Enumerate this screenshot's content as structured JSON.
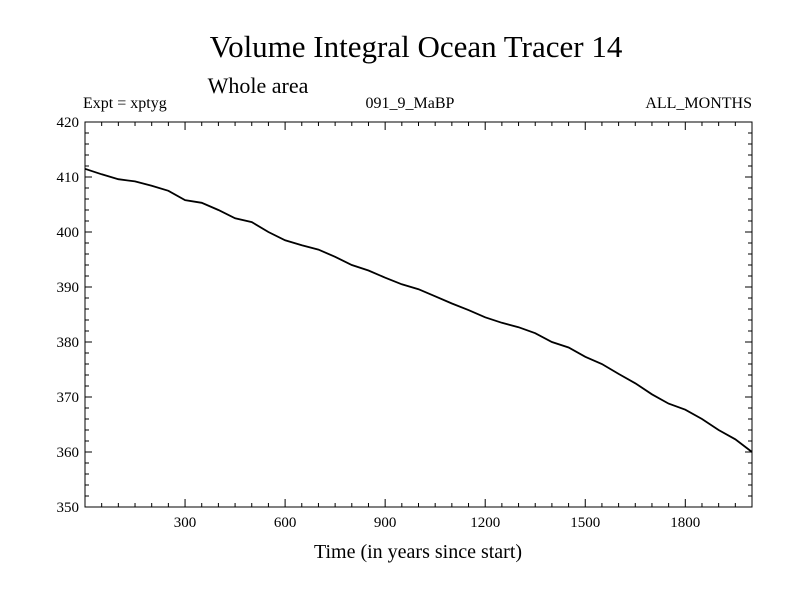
{
  "chart_data": {
    "type": "line",
    "title": "Volume Integral Ocean Tracer 14",
    "subtitle": "Whole area",
    "header_left": "Expt = xptyg",
    "header_center": "091_9_MaBP",
    "header_right": "ALL_MONTHS",
    "xlabel": "Time (in years since start)",
    "ylabel": "",
    "xlim": [
      0,
      2000
    ],
    "ylim": [
      350,
      420
    ],
    "x_ticks": [
      300,
      600,
      900,
      1200,
      1500,
      1800
    ],
    "y_ticks": [
      350,
      360,
      370,
      380,
      390,
      400,
      410,
      420
    ],
    "grid": false,
    "series": [
      {
        "x": [
          0,
          50,
          100,
          150,
          200,
          250,
          300,
          350,
          400,
          450,
          500,
          550,
          600,
          650,
          700,
          750,
          800,
          850,
          900,
          950,
          1000,
          1050,
          1100,
          1150,
          1200,
          1250,
          1300,
          1350,
          1400,
          1450,
          1500,
          1550,
          1600,
          1650,
          1700,
          1750,
          1800,
          1850,
          1900,
          1950,
          2000
        ],
        "y": [
          411.5,
          410.5,
          409.6,
          409.2,
          408.4,
          407.5,
          405.8,
          405.3,
          404.0,
          402.5,
          401.8,
          400.0,
          398.5,
          397.6,
          396.8,
          395.5,
          394.0,
          393.0,
          391.7,
          390.5,
          389.6,
          388.3,
          387.0,
          385.8,
          384.5,
          383.5,
          382.7,
          381.6,
          380.0,
          379.0,
          377.3,
          376.0,
          374.2,
          372.5,
          370.5,
          368.8,
          367.7,
          366.0,
          364.0,
          362.3,
          360.0
        ]
      }
    ]
  }
}
